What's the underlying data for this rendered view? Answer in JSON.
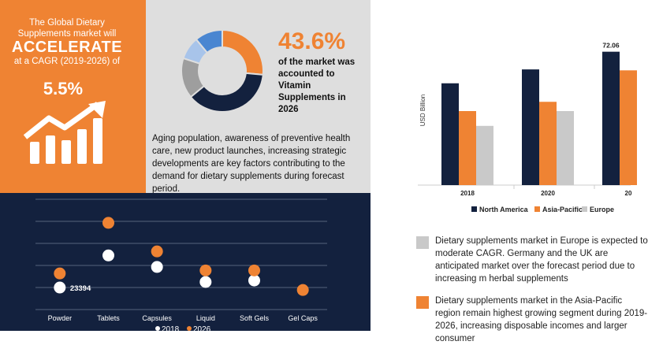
{
  "colors": {
    "orange": "#ef8333",
    "navy": "#13213e",
    "grey": "#c9c9c9",
    "white": "#ffffff",
    "lightgrey": "#dedede"
  },
  "intro": {
    "line1": "The Global Dietary",
    "line2": "Supplements market will",
    "headline": "ACCELERATE",
    "line3": "at a CAGR (2019-2026) of",
    "cagr": "5.5%",
    "icon": "growth-arrow-icon"
  },
  "share": {
    "value": "43.6%",
    "text": "of the market was accounted to Vitamin Supplements in 2026",
    "donut_segments": [
      {
        "label": "orange",
        "fraction": 0.265
      },
      {
        "label": "navy",
        "fraction": 0.375
      },
      {
        "label": "grey",
        "fraction": 0.16
      },
      {
        "label": "lightblue",
        "fraction": 0.09
      },
      {
        "label": "blue",
        "fraction": 0.11
      }
    ],
    "donut_colors": [
      "#ef8333",
      "#13213e",
      "#9e9e9e",
      "#a8c4ea",
      "#4a86d1"
    ]
  },
  "drivers": "Aging population, awareness of preventive health care, new product launches, increasing strategic developments are key factors contributing to the demand for dietary supplements during forecast period.",
  "chart_data": [
    {
      "type": "scatter",
      "categories": [
        "Powder",
        "Tablets",
        "Capsules",
        "Liquid",
        "Soft Gels",
        "Gel Caps"
      ],
      "series": [
        {
          "name": "2018",
          "values": [
            23394,
            29800,
            27500,
            24500,
            24800,
            null
          ]
        },
        {
          "name": "2026",
          "values": [
            26200,
            36300,
            30600,
            26800,
            26800,
            22900
          ]
        }
      ],
      "data_labels": [
        {
          "category": "Powder",
          "text": "23394"
        }
      ],
      "ylim": [
        19000,
        41000
      ],
      "grid": true,
      "legend": "bottom"
    },
    {
      "type": "bar",
      "categories": [
        "2018",
        "2020",
        "20"
      ],
      "series": [
        {
          "name": "North America",
          "values": [
            55.0,
            62.5,
            72.06
          ]
        },
        {
          "name": "Asia-Pacific",
          "values": [
            40.0,
            45.0,
            62.0
          ]
        },
        {
          "name": "Europe",
          "values": [
            32.0,
            40.0,
            null
          ]
        }
      ],
      "data_labels": [
        {
          "category": "20",
          "series": "North America",
          "text": "72.06"
        }
      ],
      "ylabel": "USD Billion",
      "ylim": [
        0,
        80
      ],
      "legend": "bottom"
    }
  ],
  "bullets": [
    {
      "color": "#c9c9c9",
      "text": "Dietary supplements market in Europe is expected to moderate CAGR. Germany and the UK are anticipated market over the forecast period due to increasing m herbal supplements"
    },
    {
      "color": "#ef8333",
      "text": "Dietary supplements market in the Asia-Pacific region remain highest growing segment during 2019-2026, increasing disposable incomes and larger consumer"
    }
  ]
}
